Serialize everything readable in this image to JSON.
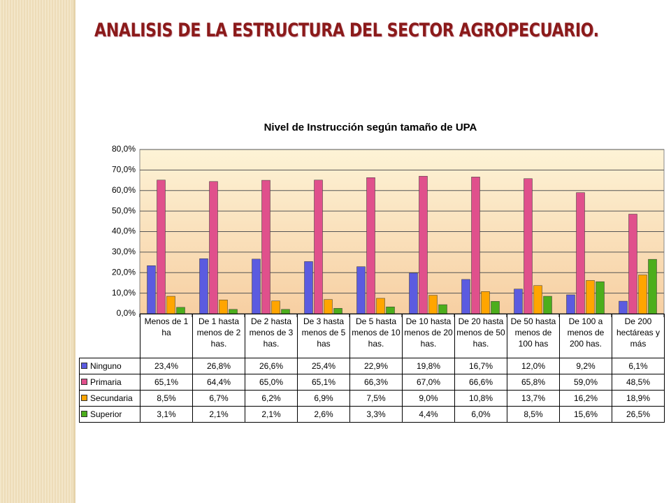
{
  "title": "ANALISIS DE LA ESTRUCTURA DEL SECTOR AGROPECUARIO.",
  "chart_data": {
    "type": "bar",
    "title": "Nivel de Instrucción según tamaño de UPA",
    "categories": [
      "Menos de 1 ha",
      "De 1 hasta menos de 2 has.",
      "De 2 hasta menos de 3 has.",
      "De 3 hasta menos de 5 has",
      "De 5 hasta menos de 10 has.",
      "De 10 hasta menos de 20 has.",
      "De 20 hasta menos de 50 has.",
      "De 50 hasta menos de 100 has",
      "De 100 a menos de 200 has.",
      "De 200 hectáreas y más"
    ],
    "series": [
      {
        "name": "Ninguno",
        "color": "#5b5be0",
        "values": [
          23.4,
          26.8,
          26.6,
          25.4,
          22.9,
          19.8,
          16.7,
          12.0,
          9.2,
          6.1
        ],
        "value_labels": [
          "23,4%",
          "26,8%",
          "26,6%",
          "25,4%",
          "22,9%",
          "19,8%",
          "16,7%",
          "12,0%",
          "9,2%",
          "6,1%"
        ]
      },
      {
        "name": "Primaria",
        "color": "#e0508c",
        "values": [
          65.1,
          64.4,
          65.0,
          65.1,
          66.3,
          67.0,
          66.6,
          65.8,
          59.0,
          48.5
        ],
        "value_labels": [
          "65,1%",
          "64,4%",
          "65,0%",
          "65,1%",
          "66,3%",
          "67,0%",
          "66,6%",
          "65,8%",
          "59,0%",
          "48,5%"
        ]
      },
      {
        "name": "Secundaria",
        "color": "#ffa500",
        "values": [
          8.5,
          6.7,
          6.2,
          6.9,
          7.5,
          9.0,
          10.8,
          13.7,
          16.2,
          18.9
        ],
        "value_labels": [
          "8,5%",
          "6,7%",
          "6,2%",
          "6,9%",
          "7,5%",
          "9,0%",
          "10,8%",
          "13,7%",
          "16,2%",
          "18,9%"
        ]
      },
      {
        "name": "Superior",
        "color": "#4cae1c",
        "values": [
          3.1,
          2.1,
          2.1,
          2.6,
          3.3,
          4.4,
          6.0,
          8.5,
          15.6,
          26.5
        ],
        "value_labels": [
          "3,1%",
          "2,1%",
          "2,1%",
          "2,6%",
          "3,3%",
          "4,4%",
          "6,0%",
          "8,5%",
          "15,6%",
          "26,5%"
        ]
      }
    ],
    "ylim": [
      0,
      80
    ],
    "yticks": [
      {
        "value": 0,
        "label": "0,0%"
      },
      {
        "value": 10,
        "label": "10,0%"
      },
      {
        "value": 20,
        "label": "20,0%"
      },
      {
        "value": 30,
        "label": "30,0%"
      },
      {
        "value": 40,
        "label": "40,0%"
      },
      {
        "value": 50,
        "label": "50,0%"
      },
      {
        "value": 60,
        "label": "60,0%"
      },
      {
        "value": 70,
        "label": "70,0%"
      },
      {
        "value": 80,
        "label": "80,0%"
      }
    ],
    "grid": true
  }
}
